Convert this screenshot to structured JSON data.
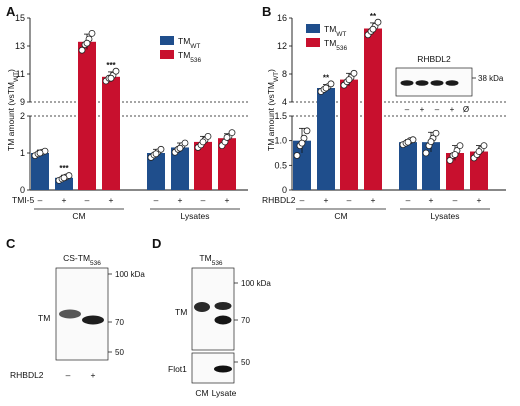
{
  "colors": {
    "wt": "#1f4e8c",
    "s536": "#c8102e"
  },
  "panels": {
    "a": "A",
    "b": "B",
    "c": "C",
    "d": "D"
  },
  "chart_data": [
    {
      "id": "A",
      "type": "bar",
      "ylabel": "TM amount (vsTM",
      "ylabel_sub": "WT",
      "ylabel_end": ")",
      "treatment_label": "TMI-5",
      "treatment_values": [
        "–",
        "+",
        "–",
        "+",
        "–",
        "+",
        "–",
        "+"
      ],
      "groups": [
        "CM",
        "Lysates"
      ],
      "legend": [
        {
          "name": "TM",
          "sub": "WT",
          "color": "wt"
        },
        {
          "name": "TM",
          "sub": "536",
          "color": "s536"
        }
      ],
      "ylim_lower": [
        0,
        2
      ],
      "yticks_lower": [
        "0",
        "1",
        "2"
      ],
      "ylim_upper": [
        9,
        15
      ],
      "yticks_upper": [
        "9",
        "11",
        "13",
        "15"
      ],
      "bars": [
        {
          "series": "wt",
          "value": 1.0,
          "err": 0.08,
          "sig": "",
          "points": [
            0.93,
            0.98,
            1.02,
            1.05,
            1.0
          ]
        },
        {
          "series": "wt",
          "value": 0.33,
          "err": 0.07,
          "sig": "***",
          "points": [
            0.26,
            0.3,
            0.35,
            0.39,
            0.33
          ]
        },
        {
          "series": "s536",
          "value": 13.3,
          "err": 0.55,
          "sig": "",
          "points": [
            12.7,
            13.1,
            13.5,
            13.9,
            13.2
          ]
        },
        {
          "series": "s536",
          "value": 10.8,
          "err": 0.35,
          "sig": "***",
          "points": [
            10.5,
            10.7,
            10.9,
            11.2,
            10.7
          ]
        },
        {
          "series": "wt",
          "value": 1.0,
          "err": 0.1,
          "sig": "",
          "points": [
            0.88,
            0.95,
            1.03,
            1.1,
            0.98
          ]
        },
        {
          "series": "wt",
          "value": 1.15,
          "err": 0.12,
          "sig": "",
          "points": [
            1.02,
            1.1,
            1.2,
            1.27,
            1.13
          ]
        },
        {
          "series": "s536",
          "value": 1.3,
          "err": 0.15,
          "sig": "",
          "points": [
            1.15,
            1.22,
            1.35,
            1.45,
            1.3
          ]
        },
        {
          "series": "s536",
          "value": 1.4,
          "err": 0.12,
          "sig": "",
          "points": [
            1.2,
            1.3,
            1.45,
            1.55,
            1.42
          ]
        }
      ]
    },
    {
      "id": "B",
      "type": "bar",
      "ylabel": "TM amount (vsTM",
      "ylabel_sub": "WT",
      "ylabel_end": ")",
      "treatment_label": "RHBDL2",
      "treatment_values": [
        "–",
        "+",
        "–",
        "+",
        "–",
        "+",
        "–",
        "+"
      ],
      "groups": [
        "CM",
        "Lysates"
      ],
      "legend": [
        {
          "name": "TM",
          "sub": "WT",
          "color": "wt"
        },
        {
          "name": "TM",
          "sub": "536",
          "color": "s536"
        }
      ],
      "ylim_lower": [
        0,
        1.5
      ],
      "yticks_lower": [
        "0",
        "0.5",
        "1.0",
        "1.5"
      ],
      "ylim_upper": [
        4,
        16
      ],
      "yticks_upper": [
        "4",
        "8",
        "12",
        "16"
      ],
      "bars": [
        {
          "series": "wt",
          "value": 1.0,
          "err": 0.25,
          "sig": "",
          "points": [
            0.7,
            0.9,
            1.05,
            1.2,
            0.95
          ]
        },
        {
          "series": "wt",
          "value": 6.0,
          "err": 0.5,
          "sig": "**",
          "points": [
            5.5,
            5.8,
            6.2,
            6.6,
            6.0
          ]
        },
        {
          "series": "s536",
          "value": 7.2,
          "err": 0.9,
          "sig": "",
          "points": [
            6.4,
            6.9,
            7.5,
            8.1,
            7.2
          ]
        },
        {
          "series": "s536",
          "value": 14.5,
          "err": 0.8,
          "sig": "**",
          "points": [
            13.6,
            14.1,
            14.8,
            15.4,
            14.4
          ]
        },
        {
          "series": "wt",
          "value": 0.97,
          "err": 0.05,
          "sig": "",
          "points": [
            0.92,
            0.95,
            1.0,
            1.02,
            0.97
          ]
        },
        {
          "series": "wt",
          "value": 0.97,
          "err": 0.2,
          "sig": "",
          "points": [
            0.75,
            0.9,
            1.05,
            1.15,
            0.98
          ]
        },
        {
          "series": "s536",
          "value": 0.75,
          "err": 0.15,
          "sig": "",
          "points": [
            0.6,
            0.7,
            0.8,
            0.9,
            0.72
          ]
        },
        {
          "series": "s536",
          "value": 0.78,
          "err": 0.12,
          "sig": "",
          "points": [
            0.65,
            0.72,
            0.82,
            0.9,
            0.78
          ]
        }
      ]
    }
  ],
  "blot_b": {
    "title": "RHBDL2",
    "marker": "38 kDa",
    "lanes": [
      "–",
      "+",
      "–",
      "+",
      "Ø"
    ]
  },
  "blot_c": {
    "title": "CS-TM",
    "title_sub": "536",
    "band": "TM",
    "markers": [
      "100 kDa",
      "70",
      "50"
    ],
    "row_label": "RHBDL2",
    "lanes": [
      "–",
      "+"
    ]
  },
  "blot_d": {
    "title": "TM",
    "title_sub": "536",
    "band": "TM",
    "band2": "Flot1",
    "markers": [
      "100 kDa",
      "70",
      "50"
    ],
    "lanes": [
      "CM",
      "Lysate"
    ]
  }
}
